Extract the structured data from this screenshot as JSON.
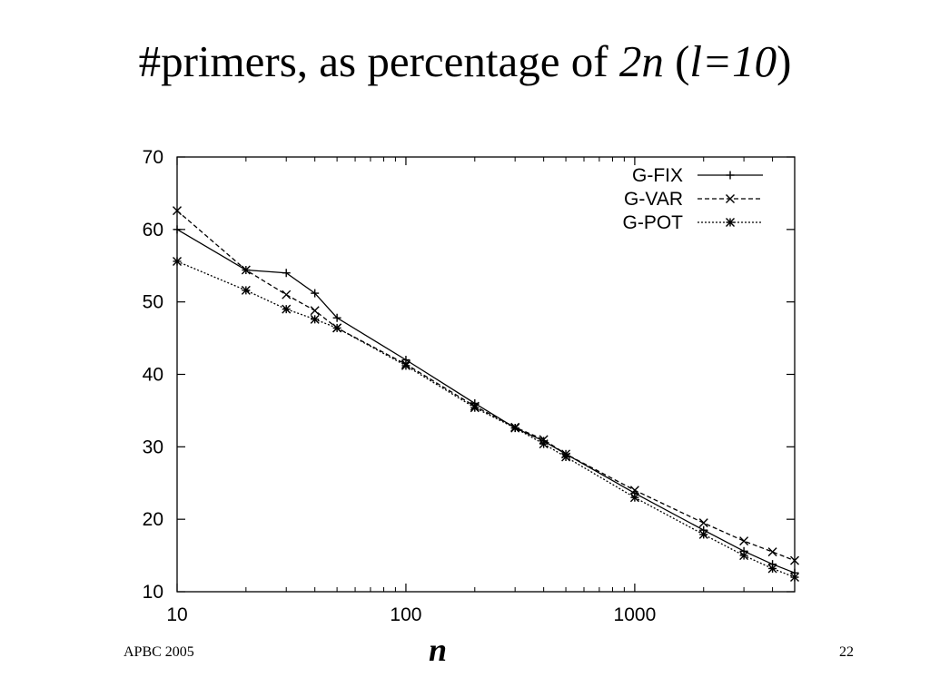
{
  "slide": {
    "title_prefix": "#primers, as percentage of ",
    "title_em1": "2n",
    "title_mid": " (",
    "title_em2": "l=10",
    "title_suffix": ")",
    "footer_left": "APBC 2005",
    "page_number": "22"
  },
  "chart_data": {
    "type": "line",
    "title": "",
    "xlabel": "n",
    "ylabel": "",
    "xscale": "log",
    "xlim": [
      10,
      5000
    ],
    "ylim": [
      10,
      70
    ],
    "x_ticks": [
      10,
      100,
      1000
    ],
    "x_tick_labels": [
      "10",
      "100",
      "1000"
    ],
    "y_ticks": [
      10,
      20,
      30,
      40,
      50,
      60,
      70
    ],
    "y_tick_labels": [
      "10",
      "20",
      "30",
      "40",
      "50",
      "60",
      "70"
    ],
    "grid": false,
    "legend_position": "top-right",
    "x": [
      10,
      20,
      30,
      40,
      50,
      100,
      200,
      300,
      400,
      500,
      1000,
      2000,
      3000,
      4000,
      5000
    ],
    "series": [
      {
        "name": "G-FIX",
        "marker": "plus",
        "dash": "solid",
        "values": [
          60.0,
          54.4,
          54.0,
          51.2,
          47.8,
          42.0,
          36.0,
          32.6,
          30.8,
          29.0,
          23.6,
          18.5,
          15.6,
          13.8,
          12.6
        ]
      },
      {
        "name": "G-VAR",
        "marker": "x",
        "dash": "dashed",
        "values": [
          62.6,
          54.4,
          51.0,
          48.8,
          46.4,
          41.4,
          35.6,
          32.7,
          31.0,
          29.0,
          24.0,
          19.5,
          17.0,
          15.5,
          14.3
        ]
      },
      {
        "name": "G-POT",
        "marker": "star",
        "dash": "dotted",
        "values": [
          55.6,
          51.6,
          49.0,
          47.6,
          46.4,
          41.2,
          35.4,
          32.6,
          30.4,
          28.6,
          23.0,
          17.9,
          15.0,
          13.2,
          12.0
        ]
      }
    ]
  }
}
